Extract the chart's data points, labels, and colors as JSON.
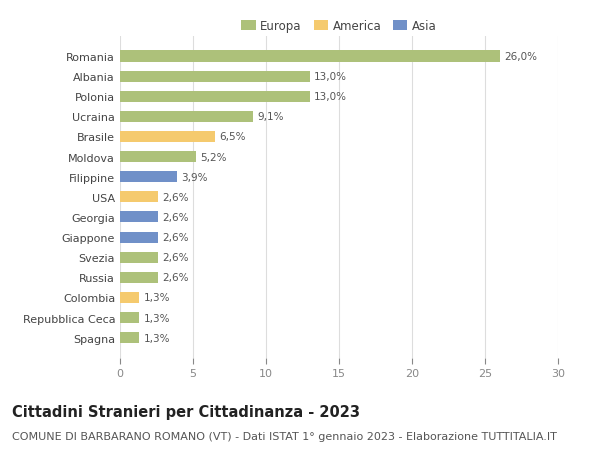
{
  "categories": [
    "Romania",
    "Albania",
    "Polonia",
    "Ucraina",
    "Brasile",
    "Moldova",
    "Filippine",
    "USA",
    "Georgia",
    "Giappone",
    "Svezia",
    "Russia",
    "Colombia",
    "Repubblica Ceca",
    "Spagna"
  ],
  "values": [
    26.0,
    13.0,
    13.0,
    9.1,
    6.5,
    5.2,
    3.9,
    2.6,
    2.6,
    2.6,
    2.6,
    2.6,
    1.3,
    1.3,
    1.3
  ],
  "labels": [
    "26,0%",
    "13,0%",
    "13,0%",
    "9,1%",
    "6,5%",
    "5,2%",
    "3,9%",
    "2,6%",
    "2,6%",
    "2,6%",
    "2,6%",
    "2,6%",
    "1,3%",
    "1,3%",
    "1,3%"
  ],
  "continents": [
    "Europa",
    "Europa",
    "Europa",
    "Europa",
    "America",
    "Europa",
    "Asia",
    "America",
    "Asia",
    "Asia",
    "Europa",
    "Europa",
    "America",
    "Europa",
    "Europa"
  ],
  "colors": {
    "Europa": "#adc17a",
    "America": "#f5ca6e",
    "Asia": "#7090c8"
  },
  "legend_entries": [
    "Europa",
    "America",
    "Asia"
  ],
  "title": "Cittadini Stranieri per Cittadinanza - 2023",
  "subtitle": "COMUNE DI BARBARANO ROMANO (VT) - Dati ISTAT 1° gennaio 2023 - Elaborazione TUTTITALIA.IT",
  "xlim": [
    0,
    30
  ],
  "xticks": [
    0,
    5,
    10,
    15,
    20,
    25,
    30
  ],
  "background_color": "#ffffff",
  "grid_color": "#dddddd",
  "bar_height": 0.55,
  "title_fontsize": 10.5,
  "subtitle_fontsize": 8,
  "label_fontsize": 7.5,
  "tick_fontsize": 8,
  "legend_fontsize": 8.5
}
